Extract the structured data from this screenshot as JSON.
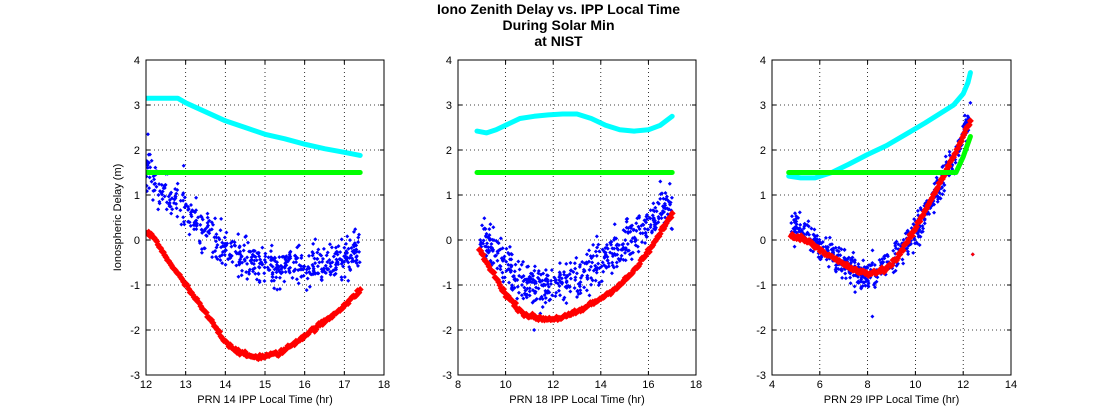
{
  "figure": {
    "title_lines": [
      "Iono Zenith Delay vs. IPP Local Time",
      "During Solar Min",
      "at NIST"
    ]
  },
  "colors": {
    "truth_points": "#0000ff",
    "model_points": "#ff0000",
    "cyan_curve": "#00ffff",
    "green_curve": "#00ff00"
  },
  "chart_data": [
    {
      "type": "scatter",
      "xlabel": "PRN 14 IPP Local Time (hr)",
      "ylabel": "Ionospheric Delay (m)",
      "xlim": [
        12,
        18
      ],
      "ylim": [
        -3,
        4
      ],
      "xticks": [
        "12",
        "13",
        "14",
        "15",
        "16",
        "17",
        "18"
      ],
      "yticks": [
        "-3",
        "-2",
        "-1",
        "0",
        "1",
        "2",
        "3",
        "4"
      ],
      "grid": true,
      "series": [
        {
          "color": "#00ffff",
          "style": "line",
          "points": [
            [
              12.0,
              3.15
            ],
            [
              12.4,
              3.15
            ],
            [
              12.8,
              3.15
            ],
            [
              13.0,
              3.05
            ],
            [
              13.5,
              2.85
            ],
            [
              14.0,
              2.65
            ],
            [
              14.5,
              2.5
            ],
            [
              15.0,
              2.35
            ],
            [
              15.5,
              2.25
            ],
            [
              16.0,
              2.13
            ],
            [
              16.5,
              2.03
            ],
            [
              17.0,
              1.95
            ],
            [
              17.4,
              1.88
            ]
          ]
        },
        {
          "color": "#00ff00",
          "style": "line",
          "points": [
            [
              12.0,
              1.5
            ],
            [
              17.4,
              1.5
            ]
          ]
        },
        {
          "color": "#ff0000",
          "style": "thick-points",
          "points": [
            [
              12.0,
              0.18
            ],
            [
              12.2,
              0.05
            ],
            [
              12.4,
              -0.25
            ],
            [
              12.6,
              -0.5
            ],
            [
              12.8,
              -0.75
            ],
            [
              13.0,
              -1.0
            ],
            [
              13.2,
              -1.25
            ],
            [
              13.4,
              -1.5
            ],
            [
              13.6,
              -1.75
            ],
            [
              13.8,
              -2.0
            ],
            [
              14.0,
              -2.25
            ],
            [
              14.2,
              -2.4
            ],
            [
              14.4,
              -2.52
            ],
            [
              14.6,
              -2.58
            ],
            [
              14.8,
              -2.6
            ],
            [
              15.0,
              -2.58
            ],
            [
              15.2,
              -2.55
            ],
            [
              15.4,
              -2.5
            ],
            [
              15.6,
              -2.38
            ],
            [
              15.8,
              -2.25
            ],
            [
              16.0,
              -2.12
            ],
            [
              16.2,
              -2.0
            ],
            [
              16.4,
              -1.88
            ],
            [
              16.6,
              -1.75
            ],
            [
              16.8,
              -1.6
            ],
            [
              17.0,
              -1.45
            ],
            [
              17.2,
              -1.3
            ],
            [
              17.4,
              -1.1
            ]
          ]
        },
        {
          "color": "#0000ff",
          "style": "scatter",
          "trend": [
            [
              12.0,
              1.6
            ],
            [
              12.3,
              1.2
            ],
            [
              12.6,
              0.95
            ],
            [
              13.0,
              0.6
            ],
            [
              13.3,
              0.35
            ],
            [
              13.6,
              0.05
            ],
            [
              14.0,
              -0.2
            ],
            [
              14.4,
              -0.4
            ],
            [
              14.8,
              -0.55
            ],
            [
              15.2,
              -0.6
            ],
            [
              15.6,
              -0.6
            ],
            [
              16.0,
              -0.55
            ],
            [
              16.4,
              -0.5
            ],
            [
              16.8,
              -0.4
            ],
            [
              17.2,
              -0.3
            ],
            [
              17.4,
              -0.25
            ]
          ],
          "spread": 0.45,
          "outliers": [
            [
              12.05,
              2.35
            ],
            [
              12.95,
              1.65
            ],
            [
              12.1,
              1.9
            ]
          ]
        }
      ]
    },
    {
      "type": "scatter",
      "xlabel": "PRN 18 IPP Local Time (hr)",
      "ylabel": "",
      "xlim": [
        8,
        18
      ],
      "ylim": [
        -3,
        4
      ],
      "xticks": [
        "8",
        "10",
        "12",
        "14",
        "16",
        "18"
      ],
      "yticks": [
        "-3",
        "-2",
        "-1",
        "0",
        "1",
        "2",
        "3",
        "4"
      ],
      "grid": true,
      "series": [
        {
          "color": "#00ffff",
          "style": "line",
          "points": [
            [
              8.8,
              2.42
            ],
            [
              9.2,
              2.38
            ],
            [
              9.6,
              2.45
            ],
            [
              10.0,
              2.55
            ],
            [
              10.6,
              2.7
            ],
            [
              11.2,
              2.75
            ],
            [
              11.8,
              2.78
            ],
            [
              12.4,
              2.8
            ],
            [
              13.0,
              2.8
            ],
            [
              13.6,
              2.7
            ],
            [
              14.2,
              2.55
            ],
            [
              14.8,
              2.45
            ],
            [
              15.4,
              2.42
            ],
            [
              16.0,
              2.45
            ],
            [
              16.5,
              2.55
            ],
            [
              17.0,
              2.75
            ]
          ]
        },
        {
          "color": "#00ff00",
          "style": "line",
          "points": [
            [
              8.8,
              1.5
            ],
            [
              17.0,
              1.5
            ]
          ]
        },
        {
          "color": "#ff0000",
          "style": "thick-points",
          "points": [
            [
              8.9,
              -0.2
            ],
            [
              9.2,
              -0.5
            ],
            [
              9.6,
              -0.85
            ],
            [
              10.0,
              -1.2
            ],
            [
              10.4,
              -1.45
            ],
            [
              10.8,
              -1.65
            ],
            [
              11.2,
              -1.72
            ],
            [
              11.6,
              -1.75
            ],
            [
              12.0,
              -1.75
            ],
            [
              12.4,
              -1.72
            ],
            [
              12.8,
              -1.65
            ],
            [
              13.2,
              -1.55
            ],
            [
              13.6,
              -1.42
            ],
            [
              14.0,
              -1.3
            ],
            [
              14.4,
              -1.15
            ],
            [
              14.8,
              -1.0
            ],
            [
              15.2,
              -0.8
            ],
            [
              15.6,
              -0.55
            ],
            [
              16.0,
              -0.25
            ],
            [
              16.4,
              0.05
            ],
            [
              16.7,
              0.35
            ],
            [
              17.0,
              0.55
            ]
          ]
        },
        {
          "color": "#0000ff",
          "style": "scatter",
          "trend": [
            [
              8.9,
              0.1
            ],
            [
              9.3,
              -0.1
            ],
            [
              9.8,
              -0.4
            ],
            [
              10.3,
              -0.7
            ],
            [
              10.8,
              -0.9
            ],
            [
              11.3,
              -1.05
            ],
            [
              11.8,
              -1.1
            ],
            [
              12.3,
              -1.0
            ],
            [
              12.8,
              -0.9
            ],
            [
              13.3,
              -0.75
            ],
            [
              13.8,
              -0.6
            ],
            [
              14.3,
              -0.4
            ],
            [
              14.8,
              -0.2
            ],
            [
              15.3,
              0.05
            ],
            [
              15.8,
              0.3
            ],
            [
              16.3,
              0.55
            ],
            [
              16.8,
              0.75
            ],
            [
              17.0,
              0.8
            ]
          ],
          "spread": 0.45,
          "outliers": [
            [
              11.2,
              -2.0
            ],
            [
              16.9,
              1.25
            ],
            [
              16.5,
              1.3
            ]
          ]
        }
      ]
    },
    {
      "type": "scatter",
      "xlabel": "PRN 29 IPP Local Time (hr)",
      "ylabel": "",
      "xlim": [
        4,
        14
      ],
      "ylim": [
        -3,
        4
      ],
      "xticks": [
        "4",
        "6",
        "8",
        "10",
        "12",
        "14"
      ],
      "yticks": [
        "-3",
        "-2",
        "-1",
        "0",
        "1",
        "2",
        "3",
        "4"
      ],
      "grid": true,
      "series": [
        {
          "color": "#00ffff",
          "style": "line",
          "points": [
            [
              4.7,
              1.42
            ],
            [
              5.2,
              1.38
            ],
            [
              5.8,
              1.38
            ],
            [
              6.5,
              1.5
            ],
            [
              7.2,
              1.68
            ],
            [
              8.0,
              1.9
            ],
            [
              8.8,
              2.1
            ],
            [
              9.6,
              2.35
            ],
            [
              10.4,
              2.6
            ],
            [
              11.0,
              2.8
            ],
            [
              11.6,
              3.0
            ],
            [
              12.0,
              3.25
            ],
            [
              12.2,
              3.5
            ],
            [
              12.3,
              3.72
            ]
          ]
        },
        {
          "color": "#00ff00",
          "style": "line",
          "points": [
            [
              4.7,
              1.5
            ],
            [
              11.7,
              1.5
            ],
            [
              12.0,
              1.85
            ],
            [
              12.3,
              2.3
            ]
          ]
        },
        {
          "color": "#ff0000",
          "style": "thick-points",
          "points": [
            [
              4.8,
              0.1
            ],
            [
              5.2,
              0.05
            ],
            [
              5.6,
              -0.05
            ],
            [
              6.0,
              -0.2
            ],
            [
              6.4,
              -0.35
            ],
            [
              6.8,
              -0.48
            ],
            [
              7.2,
              -0.6
            ],
            [
              7.6,
              -0.7
            ],
            [
              8.0,
              -0.75
            ],
            [
              8.4,
              -0.72
            ],
            [
              8.8,
              -0.62
            ],
            [
              9.2,
              -0.42
            ],
            [
              9.6,
              -0.1
            ],
            [
              10.0,
              0.25
            ],
            [
              10.4,
              0.65
            ],
            [
              10.8,
              1.05
            ],
            [
              11.2,
              1.45
            ],
            [
              11.6,
              1.85
            ],
            [
              12.0,
              2.3
            ],
            [
              12.3,
              2.65
            ]
          ]
        },
        {
          "color": "#0000ff",
          "style": "scatter",
          "trend": [
            [
              4.8,
              0.3
            ],
            [
              5.3,
              0.2
            ],
            [
              5.8,
              0.0
            ],
            [
              6.3,
              -0.25
            ],
            [
              6.8,
              -0.45
            ],
            [
              7.3,
              -0.6
            ],
            [
              7.8,
              -0.75
            ],
            [
              8.3,
              -0.7
            ],
            [
              8.8,
              -0.55
            ],
            [
              9.3,
              -0.3
            ],
            [
              9.8,
              0.05
            ],
            [
              10.3,
              0.45
            ],
            [
              10.8,
              0.95
            ],
            [
              11.3,
              1.5
            ],
            [
              11.8,
              2.05
            ],
            [
              12.2,
              2.6
            ],
            [
              12.3,
              2.8
            ]
          ],
          "spread": 0.35,
          "outliers": [
            [
              8.2,
              -1.7
            ],
            [
              12.4,
              -0.32
            ]
          ]
        }
      ]
    }
  ]
}
